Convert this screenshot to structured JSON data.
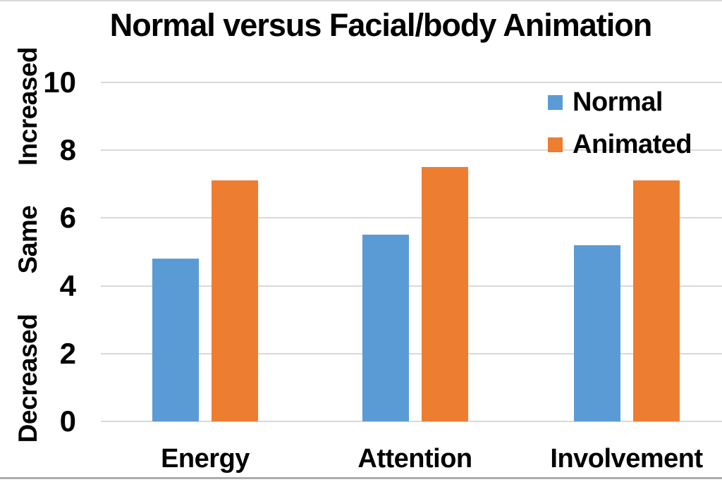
{
  "title": "Normal versus Facial/body Animation",
  "colors": {
    "normal_blue": "#5B9BD5",
    "animated_orange": "#ED7D31",
    "gridline": "#D9D9D9",
    "text": "#000000",
    "border_top": "#D9D9D9",
    "border_bottom": "#ACACAC"
  },
  "legend": {
    "items": [
      {
        "label": "Normal",
        "color": "#5B9BD5"
      },
      {
        "label": "Animated",
        "color": "#ED7D31"
      }
    ]
  },
  "y_axis": {
    "zone_labels": [
      "Increased",
      "Same",
      "Decreased"
    ]
  },
  "chart_data": {
    "type": "bar",
    "title": "Normal versus Facial/body Animation",
    "categories": [
      "Energy",
      "Attention",
      "Involvement"
    ],
    "series": [
      {
        "name": "Normal",
        "color": "#5B9BD5",
        "values": [
          4.8,
          5.5,
          5.2
        ]
      },
      {
        "name": "Animated",
        "color": "#ED7D31",
        "values": [
          7.1,
          7.5,
          7.1
        ]
      }
    ],
    "ylim": [
      0,
      10
    ],
    "y_ticks": [
      0,
      2,
      4,
      6,
      8,
      10
    ],
    "y_zone_labels": [
      {
        "label": "Increased",
        "approx_center_value": 9.3
      },
      {
        "label": "Same",
        "approx_center_value": 5.4
      },
      {
        "label": "Decreased",
        "approx_center_value": 1.3
      }
    ],
    "grid": true,
    "legend_position": "upper-right",
    "xlabel": "",
    "ylabel": ""
  }
}
